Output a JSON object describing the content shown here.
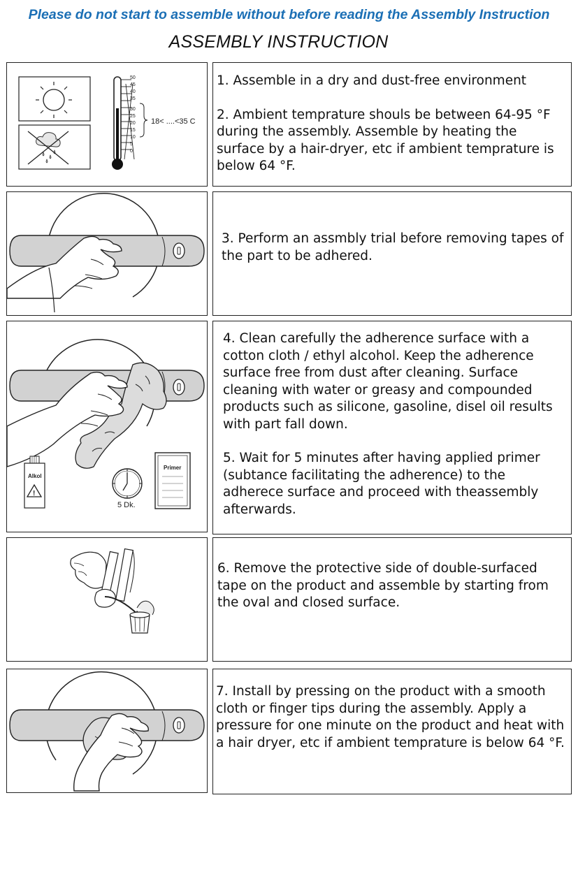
{
  "header": {
    "warning": "Please do not start to assemble without before reading the Assembly Instruction",
    "title": "ASSEMBLY INSTRUCTION"
  },
  "steps": {
    "s1": "1. Assemble in a dry and dust-free environment",
    "s2": "2. Ambient temprature shouls be between 64-95 °F during the assembly. Assemble by heating the surface by a hair-dryer, etc if ambient temprature is below 64 °F.",
    "s3": "3. Perform an assmbly trial before removing tapes of the part to be adhered.",
    "s4": "4. Clean carefully the adherence surface with a cotton cloth / ethyl alcohol. Keep the adherence surface free from dust after cleaning. Surface cleaning with water or greasy and compounded products such as silicone, gasoline, disel oil results with part fall down.",
    "s5": "5. Wait for 5 minutes after having applied primer (subtance facilitating the adherence) to the adherece surface and proceed with theassembly afterwards.",
    "s6": "6. Remove the protective side of double-surfaced tape on the product and assemble by starting from the oval and closed surface.",
    "s7": "7. Install by pressing on the product with a smooth cloth or finger tips during the assembly. Apply a pressure for one minute on the product and heat with a hair dryer, etc if ambient temprature is below 64 °F."
  },
  "illustrations": {
    "thermometer_ticks": [
      "50",
      "45",
      "40",
      "35",
      "30",
      "25",
      "20",
      "15",
      "10",
      "5",
      "0"
    ],
    "temp_range": "18< ....<35 C",
    "alcohol_label": "Alkol",
    "timer_label": "5 Dk.",
    "primer_label": "Primer"
  }
}
